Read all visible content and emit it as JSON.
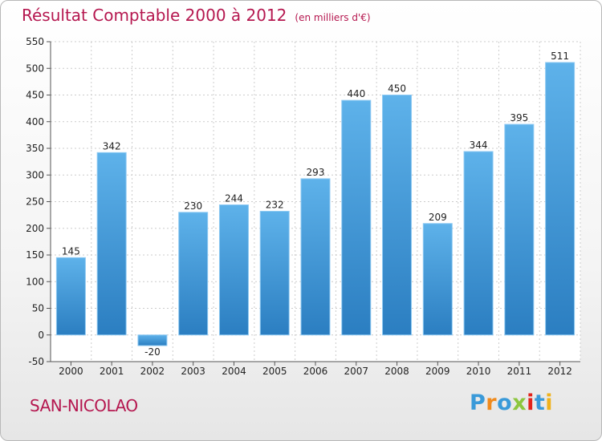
{
  "title": "Résultat Comptable 2000 à 2012",
  "subtitle": "(en milliers d'€)",
  "commune": "SAN-NICOLAO",
  "logo": {
    "text": "Proxiti",
    "letters": [
      {
        "ch": "P",
        "color": "#3a9ad9"
      },
      {
        "ch": "r",
        "color": "#f08a1c"
      },
      {
        "ch": "o",
        "color": "#3a9ad9"
      },
      {
        "ch": "x",
        "color": "#8cc63f"
      },
      {
        "ch": "i",
        "color": "#e2231a"
      },
      {
        "ch": "t",
        "color": "#3a9ad9"
      },
      {
        "ch": "i",
        "color": "#f0b21c"
      }
    ]
  },
  "colors": {
    "title": "#b5174f",
    "bar_top": "#5eb2ea",
    "bar_bottom": "#2b7ec1",
    "grid": "#cccccc",
    "axis_text": "#222222"
  },
  "chart_data": {
    "type": "bar",
    "categories": [
      "2000",
      "2001",
      "2002",
      "2003",
      "2004",
      "2005",
      "2006",
      "2007",
      "2008",
      "2009",
      "2010",
      "2011",
      "2012"
    ],
    "values": [
      145,
      342,
      -20,
      230,
      244,
      232,
      293,
      440,
      450,
      209,
      344,
      395,
      511
    ],
    "ylim": [
      -50,
      550
    ],
    "yticks": [
      -50,
      0,
      50,
      100,
      150,
      200,
      250,
      300,
      350,
      400,
      450,
      500,
      550
    ],
    "grid": true,
    "legend": "none"
  }
}
